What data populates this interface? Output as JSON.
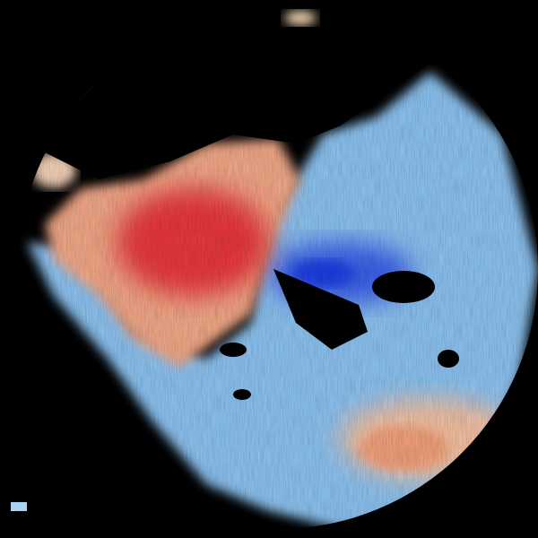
{
  "radar": {
    "product": "doppler-velocity",
    "colors": {
      "background": "#000000",
      "strong_outbound": "#e8383a",
      "moderate_outbound": "#f2907a",
      "weak_outbound": "#f8d8b8",
      "near_zero": "#f4f0f0",
      "weak_inbound": "#a8d4f4",
      "moderate_inbound": "#6aa8ec",
      "strong_inbound": "#1a3ee0"
    }
  }
}
